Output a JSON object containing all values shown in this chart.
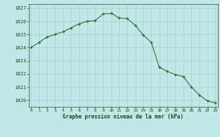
{
  "x": [
    0,
    1,
    2,
    3,
    4,
    5,
    6,
    7,
    8,
    9,
    10,
    11,
    12,
    13,
    14,
    15,
    16,
    17,
    18,
    19,
    20,
    21,
    22,
    23
  ],
  "y": [
    1024.0,
    1024.4,
    1024.8,
    1025.0,
    1025.2,
    1025.5,
    1025.8,
    1026.0,
    1026.05,
    1026.55,
    1026.6,
    1026.25,
    1026.2,
    1025.7,
    1024.95,
    1024.4,
    1022.5,
    1022.2,
    1021.95,
    1021.8,
    1021.0,
    1020.4,
    1019.95,
    1019.8
  ],
  "line_color": "#2d6a2d",
  "marker_color": "#2d6a2d",
  "bg_color": "#c0e8e8",
  "grid_color": "#a8cccc",
  "xlabel": "Graphe pression niveau de la mer (hPa)",
  "xlabel_color": "#1a4a1a",
  "tick_color": "#1a4a1a",
  "ylim": [
    1019.5,
    1027.3
  ],
  "yticks": [
    1020,
    1021,
    1022,
    1023,
    1024,
    1025,
    1026,
    1027
  ],
  "xticks": [
    0,
    1,
    2,
    3,
    4,
    5,
    6,
    7,
    8,
    9,
    10,
    11,
    12,
    13,
    14,
    15,
    16,
    17,
    18,
    19,
    20,
    21,
    22,
    23
  ],
  "xlim": [
    -0.3,
    23.3
  ]
}
